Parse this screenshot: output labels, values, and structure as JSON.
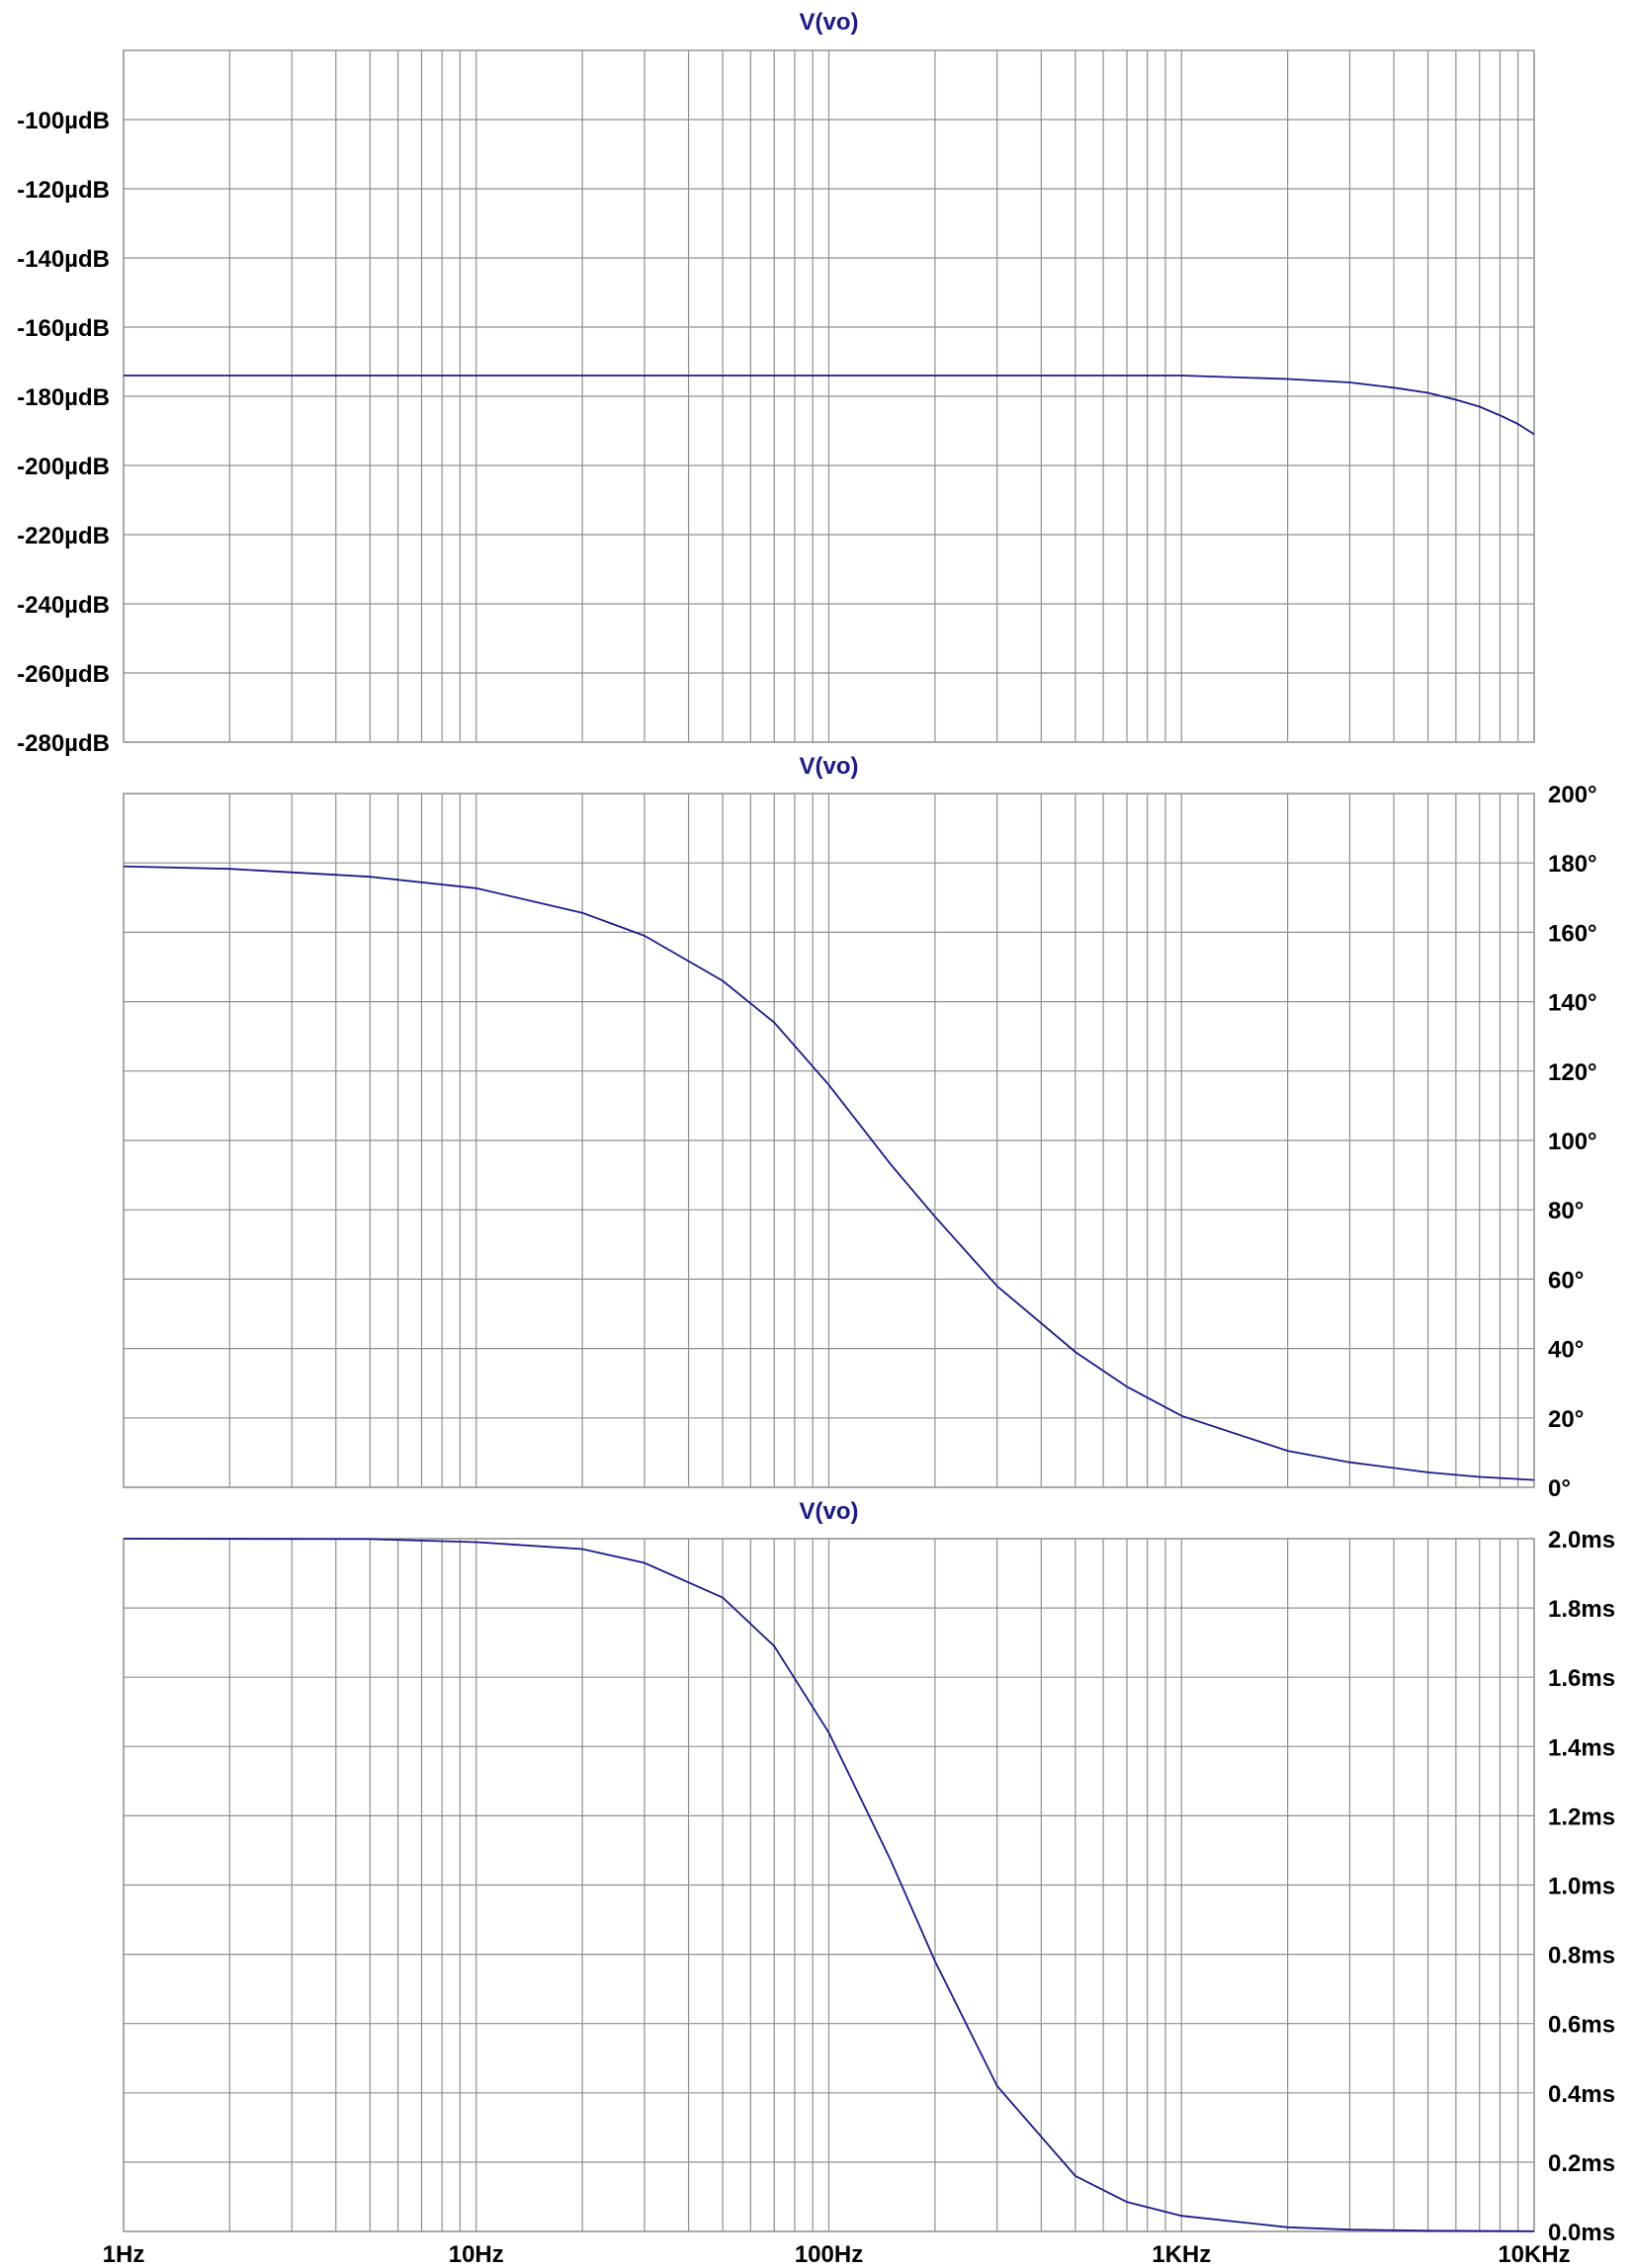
{
  "colors": {
    "trace": "#1a1a8c",
    "title": "#1a1a8c",
    "grid": "#8f8f8f",
    "text": "#000000"
  },
  "chart_data": [
    {
      "type": "line",
      "title": "V(vo)",
      "xscale": "log",
      "xlim": [
        1,
        10000
      ],
      "x_tick_labels": [
        "1Hz",
        "10Hz",
        "100Hz",
        "1KHz",
        "10KHz"
      ],
      "ylim": [
        -280,
        -80
      ],
      "y_ticks": [
        -100,
        -120,
        -140,
        -160,
        -180,
        -200,
        -220,
        -240,
        -260,
        -280
      ],
      "y_tick_labels": [
        "-100µdB",
        "-120µdB",
        "-140µdB",
        "-160µdB",
        "-180µdB",
        "-200µdB",
        "-220µdB",
        "-240µdB",
        "-260µdB",
        "-280µdB"
      ],
      "y_axis_side": "left",
      "grid": true,
      "series": [
        {
          "x": [
            1,
            10,
            100,
            1000,
            2000,
            3000,
            4000,
            5000,
            6000,
            7000,
            8000,
            9000,
            10000
          ],
          "y": [
            -174,
            -174,
            -174,
            -174,
            -175,
            -176,
            -177.5,
            -179,
            -181,
            -183,
            -185.5,
            -188,
            -191
          ]
        }
      ]
    },
    {
      "type": "line",
      "title": "V(vo)",
      "xscale": "log",
      "xlim": [
        1,
        10000
      ],
      "x_tick_labels": [
        "1Hz",
        "10Hz",
        "100Hz",
        "1KHz",
        "10KHz"
      ],
      "ylim": [
        0,
        200
      ],
      "y_ticks": [
        200,
        180,
        160,
        140,
        120,
        100,
        80,
        60,
        40,
        20,
        0
      ],
      "y_tick_labels": [
        "200°",
        "180°",
        "160°",
        "140°",
        "120°",
        "100°",
        "80°",
        "60°",
        "40°",
        "20°",
        "0°"
      ],
      "y_axis_side": "right",
      "grid": true,
      "series": [
        {
          "x": [
            1,
            2,
            5,
            10,
            20,
            30,
            50,
            70,
            100,
            150,
            200,
            300,
            500,
            700,
            1000,
            2000,
            3000,
            5000,
            7000,
            10000
          ],
          "y": [
            179,
            178.3,
            176,
            172.7,
            165.6,
            159,
            146,
            134,
            116,
            93,
            78,
            58,
            39,
            29,
            20.6,
            10.5,
            7.2,
            4.3,
            3.0,
            2.1
          ]
        }
      ]
    },
    {
      "type": "line",
      "title": "V(vo)",
      "xscale": "log",
      "xlim": [
        1,
        10000
      ],
      "x_tick_labels": [
        "1Hz",
        "10Hz",
        "100Hz",
        "1KHz",
        "10KHz"
      ],
      "ylim": [
        0,
        2.0
      ],
      "y_ticks": [
        2.0,
        1.8,
        1.6,
        1.4,
        1.2,
        1.0,
        0.8,
        0.6,
        0.4,
        0.2,
        0.0
      ],
      "y_tick_labels": [
        "2.0ms",
        "1.8ms",
        "1.6ms",
        "1.4ms",
        "1.2ms",
        "1.0ms",
        "0.8ms",
        "0.6ms",
        "0.4ms",
        "0.2ms",
        "0.0ms"
      ],
      "y_axis_side": "right",
      "grid": true,
      "series": [
        {
          "x": [
            1,
            5,
            10,
            20,
            30,
            50,
            70,
            100,
            150,
            200,
            300,
            500,
            700,
            1000,
            2000,
            3000,
            5000,
            10000
          ],
          "y": [
            2.0,
            1.999,
            1.99,
            1.97,
            1.93,
            1.83,
            1.69,
            1.44,
            1.07,
            0.78,
            0.42,
            0.16,
            0.085,
            0.045,
            0.012,
            0.005,
            0.002,
            0.0005
          ]
        }
      ]
    }
  ]
}
